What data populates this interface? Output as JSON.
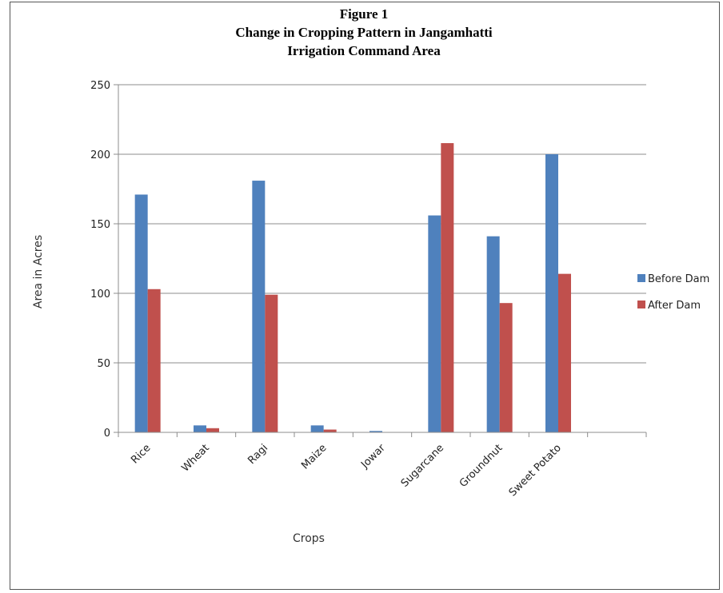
{
  "chart_data": {
    "type": "bar",
    "title_lines": [
      "Figure 1",
      "Change in Cropping Pattern in Jangamhatti",
      "Irrigation Command Area"
    ],
    "xlabel": "Crops",
    "ylabel": "Area in Acres",
    "categories": [
      "Rice",
      "Wheat",
      "Ragi",
      "Maize",
      "Jowar",
      "Sugarcane",
      "Groundnut",
      "Sweet Potato",
      ""
    ],
    "series": [
      {
        "name": "Before Dam",
        "color": "#4f81bd",
        "values": [
          171,
          5,
          181,
          5,
          1,
          156,
          141,
          200,
          0
        ]
      },
      {
        "name": "After Dam",
        "color": "#c0504d",
        "values": [
          103,
          3,
          99,
          2,
          0,
          208,
          93,
          114,
          0
        ]
      }
    ],
    "ylim": [
      0,
      250
    ],
    "yticks": [
      0,
      50,
      100,
      150,
      200,
      250
    ],
    "grid": true,
    "legend_position": "right"
  }
}
